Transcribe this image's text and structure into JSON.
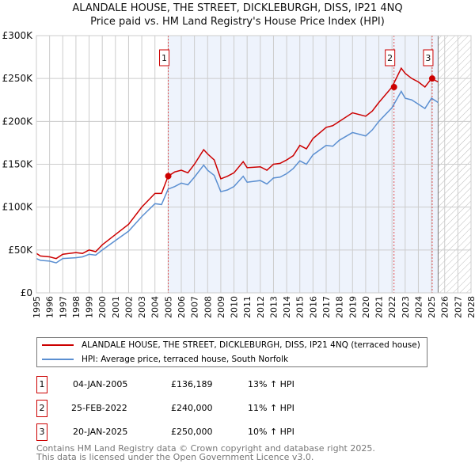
{
  "title": "ALANDALE HOUSE, THE STREET, DICKLEBURGH, DISS, IP21 4NQ",
  "subtitle": "Price paid vs. HM Land Registry's House Price Index (HPI)",
  "chart_data": {
    "type": "line",
    "title": "ALANDALE HOUSE, THE STREET, DICKLEBURGH, DISS, IP21 4NQ",
    "ylim": [
      0,
      300000
    ],
    "xlim": [
      1995,
      2028
    ],
    "yticks": [
      {
        "v": 0,
        "label": "£0"
      },
      {
        "v": 50000,
        "label": "£50K"
      },
      {
        "v": 100000,
        "label": "£100K"
      },
      {
        "v": 150000,
        "label": "£150K"
      },
      {
        "v": 200000,
        "label": "£200K"
      },
      {
        "v": 250000,
        "label": "£250K"
      },
      {
        "v": 300000,
        "label": "£300K"
      }
    ],
    "xticks": [
      "1995",
      "1996",
      "1997",
      "1998",
      "1999",
      "2000",
      "2001",
      "2002",
      "2003",
      "2004",
      "2005",
      "2006",
      "2007",
      "2008",
      "2009",
      "2010",
      "2011",
      "2012",
      "2013",
      "2014",
      "2015",
      "2016",
      "2017",
      "2018",
      "2019",
      "2020",
      "2021",
      "2022",
      "2023",
      "2024",
      "2025",
      "2026",
      "2027",
      "2028"
    ],
    "shaded_range": [
      2005.01,
      2025.5
    ],
    "hatched_from": 2025.5,
    "series": [
      {
        "name": "ALANDALE HOUSE, THE STREET, DICKLEBURGH, DISS, IP21 4NQ (terraced house)",
        "color": "#cc0000",
        "x": [
          1995,
          1995.3,
          1996,
          1996.5,
          1997,
          1998,
          1998.5,
          1999,
          1999.5,
          2000,
          2001,
          2002,
          2003,
          2004,
          2004.5,
          2005,
          2005.5,
          2006,
          2006.5,
          2007,
          2007.7,
          2008,
          2008.5,
          2009,
          2009.5,
          2010,
          2010.7,
          2011,
          2012,
          2012.5,
          2013,
          2013.5,
          2014,
          2014.5,
          2015,
          2015.5,
          2016,
          2017,
          2017.5,
          2018,
          2019,
          2020,
          2020.5,
          2021,
          2022,
          2022.7,
          2023,
          2023.5,
          2024,
          2024.5,
          2025,
          2025.5
        ],
        "y": [
          46000,
          43000,
          42000,
          40000,
          45000,
          47000,
          46000,
          50000,
          48000,
          56000,
          68000,
          80000,
          100000,
          116000,
          116000,
          136000,
          141000,
          143000,
          140000,
          150000,
          167000,
          162000,
          155000,
          133000,
          136000,
          140000,
          153000,
          146000,
          147000,
          143000,
          150000,
          151000,
          155000,
          160000,
          172000,
          168000,
          180000,
          193000,
          195000,
          200000,
          210000,
          206000,
          212000,
          222000,
          240000,
          262000,
          256000,
          250000,
          246000,
          240000,
          250000,
          246000
        ]
      },
      {
        "name": "HPI: Average price, terraced house, South Norfolk",
        "color": "#5b8fd1",
        "x": [
          1995,
          1995.3,
          1996,
          1996.5,
          1997,
          1998,
          1998.5,
          1999,
          1999.5,
          2000,
          2001,
          2002,
          2003,
          2004,
          2004.5,
          2005,
          2005.5,
          2006,
          2006.5,
          2007,
          2007.7,
          2008,
          2008.5,
          2009,
          2009.5,
          2010,
          2010.7,
          2011,
          2012,
          2012.5,
          2013,
          2013.5,
          2014,
          2014.5,
          2015,
          2015.5,
          2016,
          2017,
          2017.5,
          2018,
          2019,
          2020,
          2020.5,
          2021,
          2022,
          2022.7,
          2023,
          2023.5,
          2024,
          2024.5,
          2025,
          2025.5
        ],
        "y": [
          40000,
          38000,
          37000,
          35000,
          40000,
          41000,
          42000,
          45000,
          44000,
          50000,
          61000,
          72000,
          89000,
          104000,
          103000,
          121000,
          124000,
          128000,
          126000,
          135000,
          149000,
          143000,
          137000,
          118000,
          120000,
          124000,
          136000,
          129000,
          131000,
          127000,
          134000,
          135000,
          139000,
          145000,
          154000,
          150000,
          161000,
          172000,
          171000,
          178000,
          187000,
          183000,
          190000,
          200000,
          216000,
          235000,
          227000,
          225000,
          220000,
          215000,
          227000,
          222000
        ]
      }
    ],
    "sales": [
      {
        "label": "1",
        "x": 2005.01,
        "y": 136189
      },
      {
        "label": "2",
        "x": 2022.15,
        "y": 240000
      },
      {
        "label": "3",
        "x": 2025.05,
        "y": 250000
      }
    ]
  },
  "legend": [
    "ALANDALE HOUSE, THE STREET, DICKLEBURGH, DISS, IP21 4NQ (terraced house)",
    "HPI: Average price, terraced house, South Norfolk"
  ],
  "transactions": [
    {
      "num": "1",
      "date": "04-JAN-2005",
      "price": "£136,189",
      "hpi": "13% ↑ HPI"
    },
    {
      "num": "2",
      "date": "25-FEB-2022",
      "price": "£240,000",
      "hpi": "11% ↑ HPI"
    },
    {
      "num": "3",
      "date": "20-JAN-2025",
      "price": "£250,000",
      "hpi": "10% ↑ HPI"
    }
  ],
  "footer": [
    "Contains HM Land Registry data © Crown copyright and database right 2025.",
    "This data is licensed under the Open Government Licence v3.0."
  ]
}
